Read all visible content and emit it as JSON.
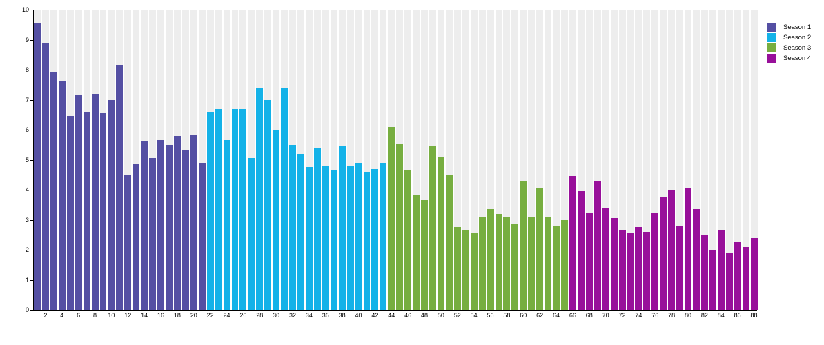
{
  "chart_data": {
    "type": "bar",
    "title": "",
    "xlabel": "",
    "ylabel": "",
    "ylim": [
      0,
      10
    ],
    "y_ticks": [
      0,
      1,
      2,
      3,
      4,
      5,
      6,
      7,
      8,
      9,
      10
    ],
    "x_tick_step": 2,
    "grid": false,
    "legend_position": "top-right",
    "band_color": "#ededed",
    "axis_color": "#000000",
    "x_unit": "episode",
    "series": [
      {
        "name": "Season 1",
        "color": "#544fa3",
        "episodes_start": 1,
        "values": [
          9.55,
          8.9,
          7.9,
          7.6,
          6.45,
          7.15,
          6.6,
          7.2,
          6.55,
          7.0,
          8.15,
          4.5,
          4.85,
          5.6,
          5.05,
          5.65,
          5.5,
          5.8,
          5.3,
          5.85,
          4.9
        ]
      },
      {
        "name": "Season 2",
        "color": "#14b2e8",
        "episodes_start": 22,
        "values": [
          6.6,
          6.7,
          5.65,
          6.7,
          6.7,
          5.05,
          7.4,
          7.0,
          6.0,
          7.4,
          5.5,
          5.2,
          4.75,
          5.4,
          4.8,
          4.65,
          5.45,
          4.8,
          4.9,
          4.6,
          4.7,
          4.9
        ]
      },
      {
        "name": "Season 3",
        "color": "#77ae40",
        "episodes_start": 44,
        "values": [
          6.1,
          5.55,
          4.65,
          3.85,
          3.65,
          5.45,
          5.1,
          4.5,
          2.75,
          2.65,
          2.55,
          3.1,
          3.35,
          3.2,
          3.1,
          2.85,
          4.3,
          3.1,
          4.05,
          3.1,
          2.8,
          3.0
        ]
      },
      {
        "name": "Season 4",
        "color": "#98109a",
        "episodes_start": 66,
        "values": [
          4.45,
          3.95,
          3.25,
          4.3,
          3.4,
          3.05,
          2.65,
          2.55,
          2.75,
          2.6,
          3.25,
          3.75,
          4.0,
          2.8,
          4.05,
          3.35,
          2.5,
          2.0,
          2.65,
          1.9,
          2.25,
          2.1,
          2.4
        ]
      }
    ],
    "x_tick_labels": [
      "2",
      "4",
      "6",
      "8",
      "10",
      "12",
      "14",
      "16",
      "18",
      "20",
      "22",
      "24",
      "26",
      "28",
      "30",
      "32",
      "34",
      "36",
      "38",
      "40",
      "42",
      "44",
      "46",
      "48",
      "50",
      "52",
      "54",
      "56",
      "58",
      "60",
      "62",
      "64",
      "66",
      "68",
      "70",
      "72",
      "74",
      "76",
      "78",
      "80",
      "82",
      "84",
      "86",
      "88"
    ]
  },
  "legend": {
    "items": [
      {
        "label": "Season 1",
        "color": "#544fa3"
      },
      {
        "label": "Season 2",
        "color": "#14b2e8"
      },
      {
        "label": "Season 3",
        "color": "#77ae40"
      },
      {
        "label": "Season 4",
        "color": "#98109a"
      }
    ]
  }
}
